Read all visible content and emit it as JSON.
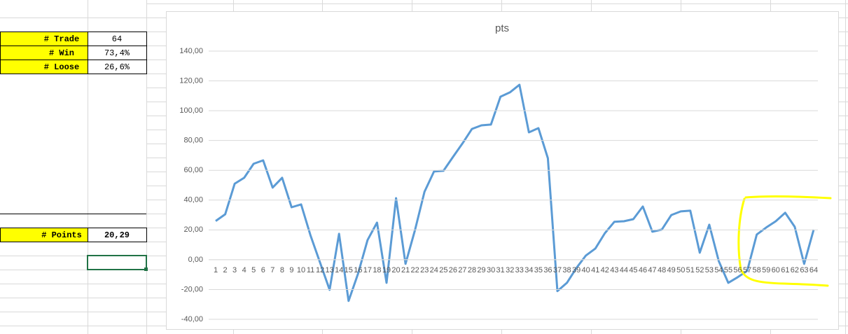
{
  "cells": [
    {
      "label": "# Trade",
      "value": "64"
    },
    {
      "label": "# Win",
      "value": "73,4%"
    },
    {
      "label": "# Loose",
      "value": "26,6%"
    },
    {
      "label": "# Points",
      "value": "20,29"
    }
  ],
  "chart_data": {
    "type": "line",
    "title": "pts",
    "categories": [
      "1",
      "2",
      "3",
      "4",
      "5",
      "6",
      "7",
      "8",
      "9",
      "10",
      "11",
      "12",
      "13",
      "14",
      "15",
      "16",
      "17",
      "18",
      "19",
      "20",
      "21",
      "22",
      "23",
      "24",
      "25",
      "26",
      "27",
      "28",
      "29",
      "30",
      "31",
      "32",
      "33",
      "34",
      "35",
      "36",
      "37",
      "38",
      "39",
      "40",
      "41",
      "42",
      "43",
      "44",
      "45",
      "46",
      "47",
      "48",
      "49",
      "50",
      "51",
      "52",
      "53",
      "54",
      "55",
      "56",
      "57",
      "58",
      "59",
      "60",
      "61",
      "62",
      "63",
      "64"
    ],
    "series": [
      {
        "name": "pts",
        "color": "#5b9bd5",
        "values": [
          26,
          30.5,
          51,
          55,
          64.4,
          66.7,
          48.4,
          55,
          35.2,
          37.1,
          16,
          -2,
          -20.2,
          17.4,
          -27.7,
          -9.4,
          13.2,
          24.9,
          -15.5,
          41.3,
          -2.8,
          20,
          45.6,
          59.2,
          59.7,
          69,
          78,
          87.8,
          90.2,
          90.7,
          109.4,
          112.3,
          117.4,
          85.5,
          88.3,
          68.1,
          -21.1,
          -15.5,
          -5.6,
          2.8,
          7.5,
          17.8,
          25.4,
          25.8,
          27.2,
          35.7,
          18.8,
          20.2,
          30,
          32.4,
          32.9,
          4.7,
          23.5,
          -0.9,
          -15.5,
          -11.7,
          -7.5,
          16.9,
          21.6,
          25.8,
          31.5,
          22.1,
          -2.8,
          20.2
        ]
      }
    ],
    "ylim": [
      -40,
      140
    ],
    "yticks": [
      {
        "value": -40,
        "label": "-40,00"
      },
      {
        "value": -20,
        "label": "-20,00"
      },
      {
        "value": 0,
        "label": "0,00"
      },
      {
        "value": 20,
        "label": "20,00"
      },
      {
        "value": 40,
        "label": "40,00"
      },
      {
        "value": 60,
        "label": "60,00"
      },
      {
        "value": 80,
        "label": "80,00"
      },
      {
        "value": 100,
        "label": "100,00"
      },
      {
        "value": 120,
        "label": "120,00"
      },
      {
        "value": 140,
        "label": "140,00"
      }
    ],
    "grid": true
  }
}
